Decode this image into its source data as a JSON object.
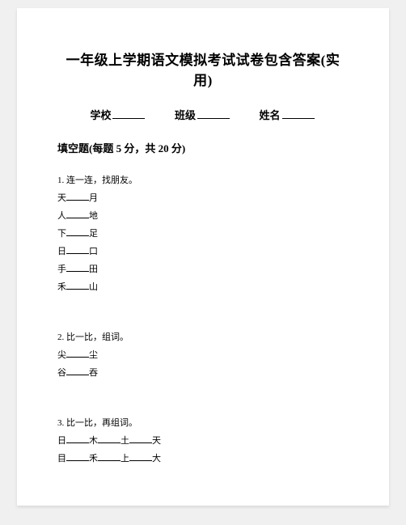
{
  "title": "一年级上学期语文模拟考试试卷包含答案(实用)",
  "info": {
    "school_label": "学校",
    "class_label": "班级",
    "name_label": "姓名"
  },
  "section_title": "填空题(每题 5 分，共 20 分)",
  "q1": {
    "num": "1.",
    "prompt": "连一连，找朋友。",
    "pairs": [
      {
        "l": "天",
        "r": "月"
      },
      {
        "l": "人",
        "r": "地"
      },
      {
        "l": "下",
        "r": "足"
      },
      {
        "l": "日",
        "r": "口"
      },
      {
        "l": "手",
        "r": "田"
      },
      {
        "l": "禾",
        "r": "山"
      }
    ]
  },
  "q2": {
    "num": "2.",
    "prompt": "比一比，组词。",
    "pairs": [
      {
        "l": "尖",
        "r": "尘"
      },
      {
        "l": "谷",
        "r": "吞"
      }
    ]
  },
  "q3": {
    "num": "3.",
    "prompt": "比一比，再组词。",
    "rows": [
      [
        "日",
        "木",
        "土",
        "天"
      ],
      [
        "目",
        "禾",
        "上",
        "大"
      ]
    ]
  }
}
